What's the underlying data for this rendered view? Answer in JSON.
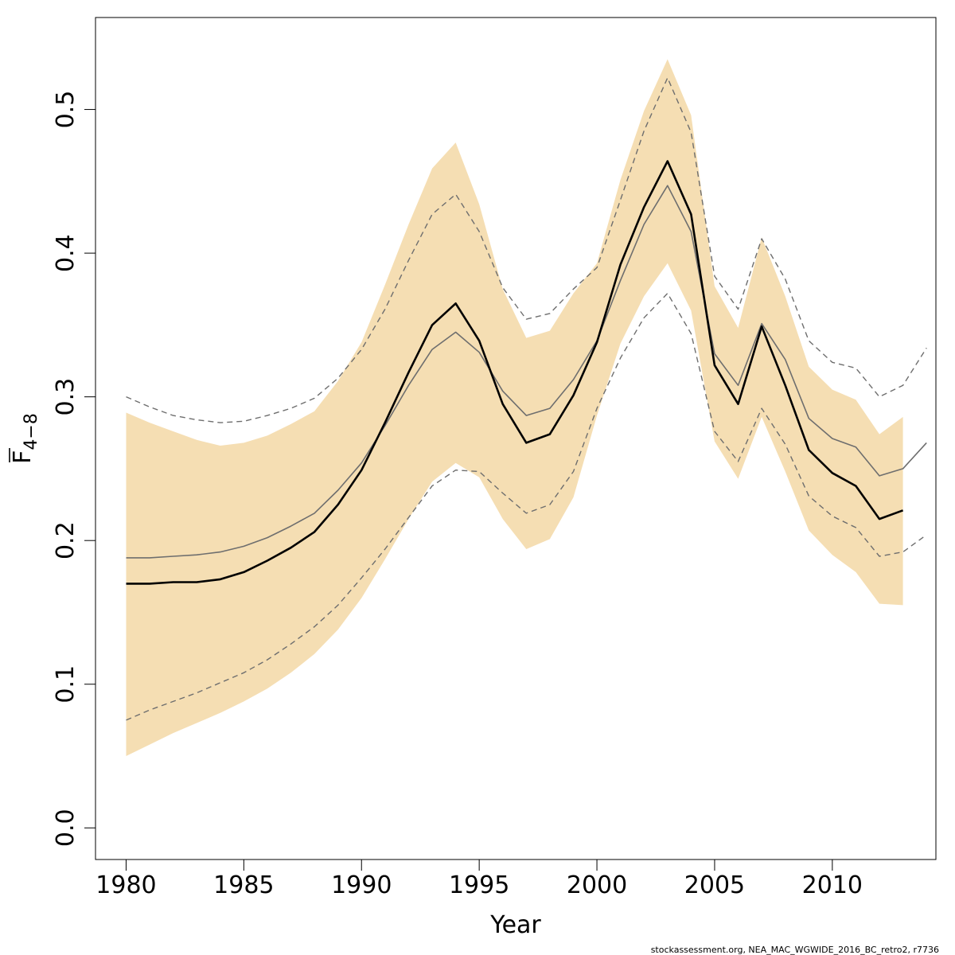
{
  "chart_data": {
    "type": "line",
    "title": "",
    "xlabel": "Year",
    "ylabel": {
      "main": "F",
      "subscript": "4−8"
    },
    "xlim": [
      1978.7,
      2014.4
    ],
    "ylim": [
      -0.022,
      0.564
    ],
    "xticks": [
      "1980",
      "1985",
      "1990",
      "1995",
      "2000",
      "2005",
      "2010"
    ],
    "yticks": [
      "0.0",
      "0.1",
      "0.2",
      "0.3",
      "0.4",
      "0.5"
    ],
    "colors": {
      "band": "#F5DEB3",
      "main": "#000000",
      "retro": "#6e6e6e"
    },
    "confidence_band": {
      "x": [
        1980,
        1981,
        1982,
        1983,
        1984,
        1985,
        1986,
        1987,
        1988,
        1989,
        1990,
        1991,
        1992,
        1993,
        1994,
        1995,
        1996,
        1997,
        1998,
        1999,
        2000,
        2001,
        2002,
        2003,
        2004,
        2005,
        2006,
        2007,
        2008,
        2009,
        2010,
        2011,
        2012,
        2013
      ],
      "upper": [
        0.289,
        0.282,
        0.276,
        0.27,
        0.266,
        0.268,
        0.273,
        0.281,
        0.29,
        0.311,
        0.338,
        0.378,
        0.42,
        0.459,
        0.477,
        0.434,
        0.375,
        0.341,
        0.346,
        0.372,
        0.393,
        0.451,
        0.499,
        0.535,
        0.496,
        0.377,
        0.348,
        0.411,
        0.37,
        0.321,
        0.305,
        0.298,
        0.274,
        0.286
      ],
      "lower": [
        0.05,
        0.058,
        0.066,
        0.073,
        0.08,
        0.088,
        0.097,
        0.108,
        0.121,
        0.138,
        0.16,
        0.187,
        0.215,
        0.241,
        0.254,
        0.244,
        0.215,
        0.194,
        0.201,
        0.23,
        0.287,
        0.337,
        0.37,
        0.393,
        0.36,
        0.269,
        0.243,
        0.286,
        0.248,
        0.207,
        0.19,
        0.178,
        0.156,
        0.155
      ]
    },
    "series": [
      {
        "style": "solid-bold",
        "x": [
          1980,
          1981,
          1982,
          1983,
          1984,
          1985,
          1986,
          1987,
          1988,
          1989,
          1990,
          1991,
          1992,
          1993,
          1994,
          1995,
          1996,
          1997,
          1998,
          1999,
          2000,
          2001,
          2002,
          2003,
          2004,
          2005,
          2006,
          2007,
          2008,
          2009,
          2010,
          2011,
          2012,
          2013
        ],
        "y": [
          0.17,
          0.17,
          0.171,
          0.171,
          0.173,
          0.178,
          0.186,
          0.195,
          0.206,
          0.225,
          0.249,
          0.282,
          0.317,
          0.35,
          0.365,
          0.339,
          0.295,
          0.268,
          0.274,
          0.301,
          0.338,
          0.392,
          0.432,
          0.464,
          0.427,
          0.322,
          0.295,
          0.349,
          0.308,
          0.263,
          0.247,
          0.238,
          0.215,
          0.221
        ]
      },
      {
        "style": "solid-grey",
        "x": [
          1980,
          1981,
          1982,
          1983,
          1984,
          1985,
          1986,
          1987,
          1988,
          1989,
          1990,
          1991,
          1992,
          1993,
          1994,
          1995,
          1996,
          1997,
          1998,
          1999,
          2000,
          2001,
          2002,
          2003,
          2004,
          2005,
          2006,
          2007,
          2008,
          2009,
          2010,
          2011,
          2012,
          2013,
          2014
        ],
        "y": [
          0.188,
          0.188,
          0.189,
          0.19,
          0.192,
          0.196,
          0.202,
          0.21,
          0.219,
          0.235,
          0.254,
          0.28,
          0.308,
          0.333,
          0.345,
          0.331,
          0.304,
          0.287,
          0.292,
          0.312,
          0.339,
          0.381,
          0.42,
          0.447,
          0.415,
          0.33,
          0.308,
          0.351,
          0.326,
          0.285,
          0.271,
          0.265,
          0.245,
          0.25,
          0.268
        ]
      },
      {
        "style": "dashed-grey",
        "x": [
          1980,
          1981,
          1982,
          1983,
          1984,
          1985,
          1986,
          1987,
          1988,
          1989,
          1990,
          1991,
          1992,
          1993,
          1994,
          1995,
          1996,
          1997,
          1998,
          1999,
          2000,
          2001,
          2002,
          2003,
          2004,
          2005,
          2006,
          2007,
          2008,
          2009,
          2010,
          2011,
          2012,
          2013,
          2014
        ],
        "y": [
          0.3,
          0.293,
          0.287,
          0.284,
          0.282,
          0.283,
          0.287,
          0.292,
          0.299,
          0.313,
          0.333,
          0.361,
          0.395,
          0.427,
          0.441,
          0.415,
          0.376,
          0.354,
          0.358,
          0.375,
          0.39,
          0.437,
          0.485,
          0.522,
          0.484,
          0.384,
          0.361,
          0.41,
          0.382,
          0.339,
          0.324,
          0.32,
          0.3,
          0.308,
          0.334
        ]
      },
      {
        "style": "dashed-grey",
        "x": [
          1980,
          1981,
          1982,
          1983,
          1984,
          1985,
          1986,
          1987,
          1988,
          1989,
          1990,
          1991,
          1992,
          1993,
          1994,
          1995,
          1996,
          1997,
          1998,
          1999,
          2000,
          2001,
          2002,
          2003,
          2004,
          2005,
          2006,
          2007,
          2008,
          2009,
          2010,
          2011,
          2012,
          2013,
          2014
        ],
        "y": [
          0.075,
          0.082,
          0.088,
          0.094,
          0.101,
          0.108,
          0.117,
          0.128,
          0.14,
          0.155,
          0.174,
          0.194,
          0.216,
          0.238,
          0.249,
          0.248,
          0.233,
          0.219,
          0.225,
          0.248,
          0.292,
          0.327,
          0.355,
          0.372,
          0.344,
          0.276,
          0.255,
          0.292,
          0.267,
          0.231,
          0.217,
          0.209,
          0.189,
          0.192,
          0.204
        ]
      }
    ],
    "legend": "none",
    "grid": false,
    "footer": "stockassessment.org, NEA_MAC_WGWIDE_2016_BC_retro2, r7736"
  }
}
